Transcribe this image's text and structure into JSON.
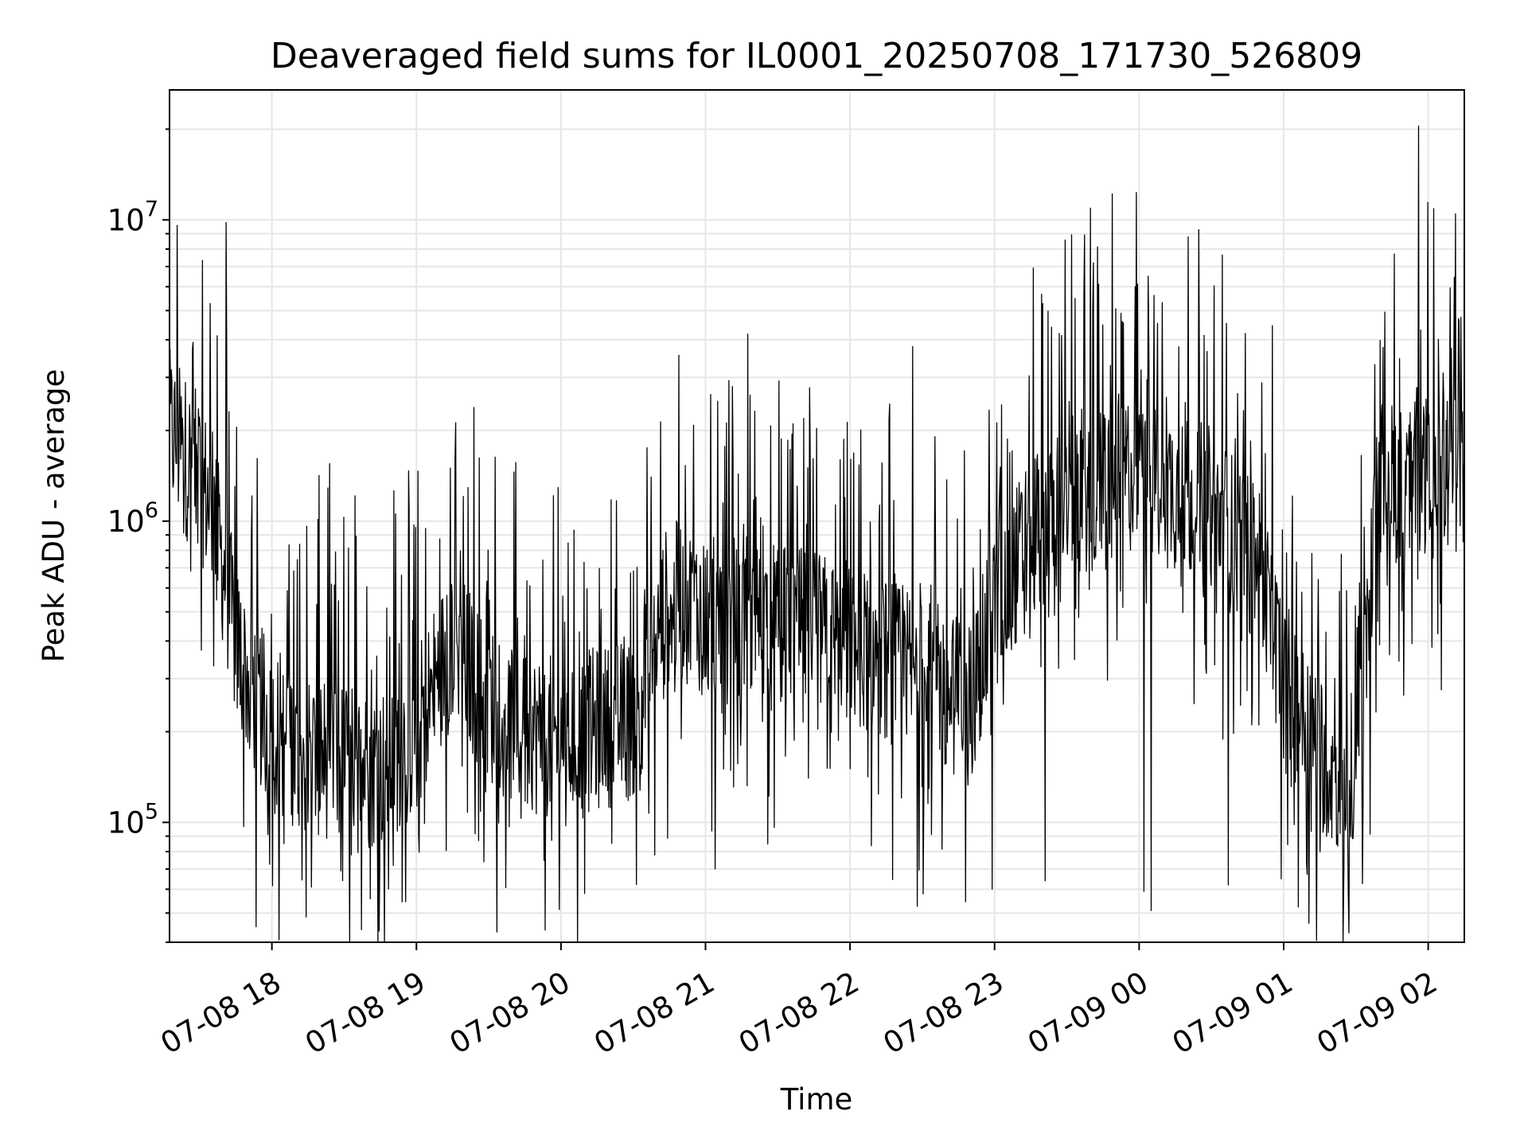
{
  "chart_data": {
    "type": "line",
    "title": "Deaveraged field sums for IL0001_20250708_171730_526809",
    "xlabel": "Time",
    "ylabel": "Peak ADU - average",
    "yscale": "log",
    "xlim": [
      "2025-07-08 17:17:30",
      "2025-07-09 02:15:00"
    ],
    "ylim": [
      40000,
      27000000
    ],
    "x_ticks": [
      "07-08 18",
      "07-08 19",
      "07-08 20",
      "07-08 21",
      "07-08 22",
      "07-08 23",
      "07-09 00",
      "07-09 01",
      "07-09 02"
    ],
    "y_ticks": [
      {
        "value": 100000,
        "base": "10",
        "exp": "5"
      },
      {
        "value": 1000000,
        "base": "10",
        "exp": "6"
      },
      {
        "value": 10000000,
        "base": "10",
        "exp": "7"
      }
    ],
    "grid": true,
    "line_color": "#000000",
    "series": [
      {
        "x": [
          "2025-07-08 17:17:30",
          "2025-07-08 17:25:00",
          "2025-07-08 17:30:00",
          "2025-07-08 17:35:00",
          "2025-07-08 17:40:00",
          "2025-07-08 17:45:00",
          "2025-07-08 17:50:00",
          "2025-07-08 18:00:00",
          "2025-07-08 18:15:00",
          "2025-07-08 18:30:00",
          "2025-07-08 18:45:00",
          "2025-07-08 19:00:00",
          "2025-07-08 19:15:00",
          "2025-07-08 19:30:00",
          "2025-07-08 19:45:00",
          "2025-07-08 20:00:00",
          "2025-07-08 20:30:00",
          "2025-07-08 20:45:00",
          "2025-07-08 21:00:00",
          "2025-07-08 21:30:00",
          "2025-07-08 22:00:00",
          "2025-07-08 22:30:00",
          "2025-07-08 22:50:00",
          "2025-07-08 23:00:00",
          "2025-07-08 23:15:00",
          "2025-07-08 23:30:00",
          "2025-07-09 00:00:00",
          "2025-07-09 00:30:00",
          "2025-07-09 00:50:00",
          "2025-07-09 01:00:00",
          "2025-07-09 01:20:00",
          "2025-07-09 01:30:00",
          "2025-07-09 01:40:00",
          "2025-07-09 01:50:00",
          "2025-07-09 01:56:00",
          "2025-07-09 02:00:00",
          "2025-07-09 02:15:00"
        ],
        "y": [
          2000000,
          1600000,
          1400000,
          1100000,
          700000,
          400000,
          300000,
          200000,
          170000,
          160000,
          150000,
          200000,
          400000,
          250000,
          200000,
          190000,
          220000,
          550000,
          500000,
          450000,
          400000,
          300000,
          250000,
          500000,
          900000,
          1200000,
          1500000,
          1100000,
          700000,
          300000,
          150000,
          150000,
          1400000,
          1300000,
          1500000,
          1400000,
          1500000
        ],
        "peaks": [
          {
            "x": "2025-07-08 17:41:00",
            "y": 9800000
          },
          {
            "x": "2025-07-08 22:26:00",
            "y": 3800000
          },
          {
            "x": "2025-07-08 23:53:00",
            "y": 4600000
          },
          {
            "x": "2025-07-09 00:04:00",
            "y": 4100000
          },
          {
            "x": "2025-07-09 01:56:00",
            "y": 20500000
          }
        ],
        "troughs": [
          {
            "x": "2025-07-08 18:05:00",
            "y": 85000
          },
          {
            "x": "2025-07-08 18:33:00",
            "y": 78000
          },
          {
            "x": "2025-07-08 19:28:00",
            "y": 74000
          },
          {
            "x": "2025-07-08 21:04:00",
            "y": 70000
          },
          {
            "x": "2025-07-08 22:59:00",
            "y": 60000
          },
          {
            "x": "2025-07-08 23:21:00",
            "y": 64000
          },
          {
            "x": "2025-07-09 00:02:00",
            "y": 59000
          },
          {
            "x": "2025-07-09 00:05:00",
            "y": 51000
          },
          {
            "x": "2025-07-09 00:37:00",
            "y": 62000
          },
          {
            "x": "2025-07-09 00:59:00",
            "y": 65000
          },
          {
            "x": "2025-07-09 01:25:00",
            "y": 71000
          }
        ]
      }
    ]
  }
}
